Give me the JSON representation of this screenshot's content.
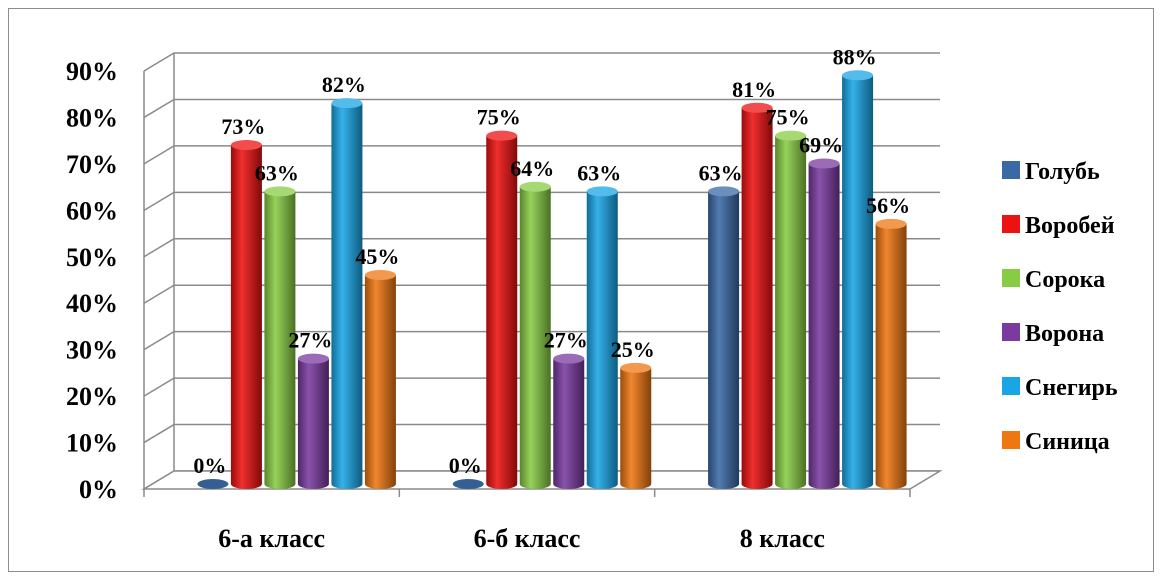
{
  "chart_data": {
    "type": "bar",
    "style": "3d-cylinder",
    "categories": [
      "6-а класс",
      "6-б класс",
      "8 класс"
    ],
    "series": [
      {
        "name": "Голубь",
        "color": "#3a6aa6",
        "values": [
          0,
          0,
          63
        ]
      },
      {
        "name": "Воробей",
        "color": "#ee1111",
        "values": [
          73,
          75,
          81
        ]
      },
      {
        "name": "Сорока",
        "color": "#88cc44",
        "values": [
          63,
          64,
          75
        ]
      },
      {
        "name": "Ворона",
        "color": "#7a3aa0",
        "values": [
          27,
          27,
          69
        ]
      },
      {
        "name": "Снегирь",
        "color": "#1aa6e6",
        "values": [
          82,
          63,
          88
        ]
      },
      {
        "name": "Синица",
        "color": "#ee7711",
        "values": [
          45,
          25,
          56
        ]
      }
    ],
    "value_format": "percent",
    "ylim": [
      0,
      90
    ],
    "y_ticks": [
      "0%",
      "10%",
      "20%",
      "30%",
      "40%",
      "50%",
      "60%",
      "70%",
      "80%",
      "90%"
    ],
    "grid": true,
    "legend_position": "right"
  }
}
